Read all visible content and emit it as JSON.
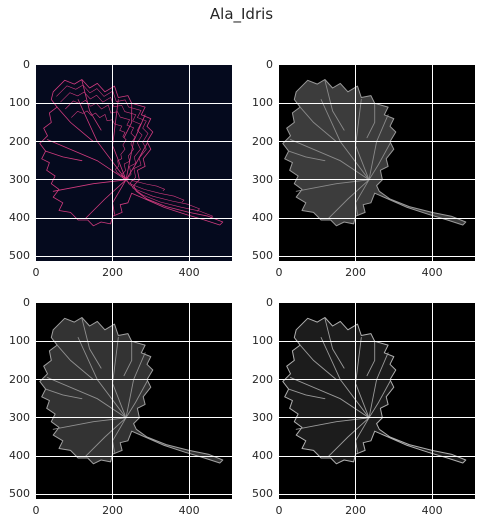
{
  "figure": {
    "title": "Ala_Idris",
    "panels": [
      {
        "name": "edge-map",
        "background": "#050a1e",
        "leaf_fill": "none",
        "leaf_stroke": "#d03a7e",
        "vein_stroke": "#d03a7e",
        "style": "edges",
        "yticks": [
          "0",
          "100",
          "200",
          "300",
          "400",
          "500"
        ],
        "xticks": [
          "0",
          "200",
          "400"
        ]
      },
      {
        "name": "grayscale-1",
        "background": "#000000",
        "leaf_fill": "#3c3c3c",
        "leaf_stroke": "#9a9a9a",
        "vein_stroke": "#8a8a8a",
        "style": "gray",
        "yticks": [
          "0",
          "100",
          "200",
          "300",
          "400",
          "500"
        ],
        "xticks": [
          "0",
          "200",
          "400"
        ]
      },
      {
        "name": "grayscale-2",
        "background": "#000000",
        "leaf_fill": "#333333",
        "leaf_stroke": "#a0a0a0",
        "vein_stroke": "#909090",
        "style": "gray",
        "yticks": [
          "0",
          "100",
          "200",
          "300",
          "400",
          "500"
        ],
        "xticks": [
          "0",
          "200",
          "400"
        ]
      },
      {
        "name": "grayscale-3",
        "background": "#000000",
        "leaf_fill": "#1c1c1c",
        "leaf_stroke": "#b0b0b0",
        "vein_stroke": "#9a9a9a",
        "style": "gray",
        "yticks": [
          "0",
          "100",
          "200",
          "300",
          "400",
          "500"
        ],
        "xticks": [
          "0",
          "200",
          "400"
        ]
      }
    ]
  }
}
